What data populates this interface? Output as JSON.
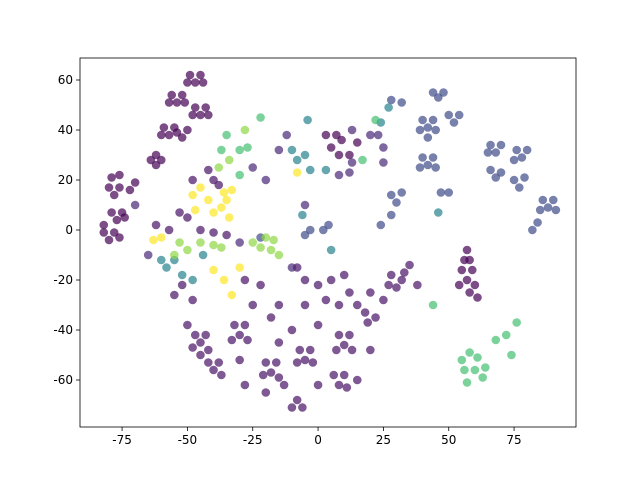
{
  "chart_data": {
    "type": "scatter",
    "xlim": [
      -91.1,
      98.7
    ],
    "ylim": [
      -78.8,
      68.8
    ],
    "xticks": [
      -75,
      -50,
      -25,
      0,
      25,
      50,
      75
    ],
    "yticks": [
      -60,
      -40,
      -20,
      0,
      20,
      40,
      60
    ],
    "series": [
      {
        "color": "#440154",
        "x": [
          -49,
          -45,
          -47,
          -44,
          -50,
          -56,
          -52,
          -54,
          -57,
          -51,
          -47,
          -43,
          -45,
          -48,
          -42,
          -59,
          -55,
          -57,
          -60,
          -54,
          -50,
          -52,
          -64,
          -60,
          -62,
          -62,
          -80,
          -76,
          -78,
          -79,
          -76,
          -70,
          -72,
          -79,
          -75,
          -77,
          -74,
          -82,
          -78,
          -80,
          -82,
          -76,
          55,
          59,
          57,
          60,
          54,
          58,
          61,
          56,
          58,
          57,
          3,
          7,
          9,
          5,
          8,
          12,
          15
        ],
        "y": [
          62,
          62,
          59,
          59,
          59,
          54,
          54,
          51,
          51,
          51,
          49,
          49,
          46,
          46,
          46,
          41,
          41,
          38,
          38,
          39,
          40,
          37,
          28,
          28,
          26,
          30,
          17,
          17,
          14,
          21,
          22,
          19,
          16,
          7,
          7,
          4,
          5,
          -1,
          -1,
          -4,
          2,
          -3,
          -16,
          -16,
          -20,
          -22,
          -22,
          -25,
          -27,
          -12,
          -12,
          -8,
          38,
          38,
          36,
          33,
          30,
          30,
          35
        ]
      },
      {
        "color": "#471365",
        "x": [
          -47,
          -43,
          -45,
          -48,
          -42,
          -45,
          -32,
          -28,
          -30,
          -33,
          -27,
          -42,
          -38,
          -40,
          -37,
          -20,
          -16,
          -18,
          -15,
          -21,
          -7,
          -3,
          -5,
          -2,
          -8,
          -10,
          -6,
          -8,
          8,
          12,
          10,
          13,
          7,
          6,
          10,
          8,
          11,
          18,
          22,
          19,
          28,
          32,
          30,
          27,
          33,
          -8,
          -5,
          0,
          5,
          10,
          12,
          8,
          3,
          -5,
          -15,
          -22,
          -28,
          -52,
          -55,
          -48,
          -25,
          -18,
          -10,
          0,
          15,
          20,
          38,
          35,
          25,
          -13,
          0,
          -30,
          -50,
          -28,
          -20,
          20,
          15,
          -15,
          -57,
          -62,
          -50,
          -53,
          -45,
          -40,
          -42,
          -35,
          -48,
          -40,
          -38
        ],
        "y": [
          -42,
          -42,
          -45,
          -47,
          -48,
          -50,
          -38,
          -38,
          -42,
          -44,
          -44,
          -53,
          -53,
          -56,
          -58,
          -53,
          -53,
          -57,
          -59,
          -58,
          -48,
          -48,
          -52,
          -53,
          -53,
          -71,
          -71,
          -68,
          -42,
          -42,
          -46,
          -48,
          -48,
          -58,
          -58,
          -62,
          -63,
          -33,
          -35,
          -37,
          -18,
          -20,
          -23,
          -22,
          -17,
          -15,
          -20,
          -22,
          -20,
          -18,
          -25,
          -30,
          -28,
          -30,
          -30,
          -22,
          -20,
          -22,
          -26,
          -28,
          -30,
          -35,
          -40,
          -38,
          -30,
          -25,
          -22,
          -14,
          -28,
          -62,
          -62,
          -52,
          -38,
          -62,
          -65,
          -48,
          -60,
          -45,
          0,
          2,
          5,
          7,
          0,
          -1,
          24,
          -2,
          20,
          20,
          18
        ]
      },
      {
        "color": "#482878",
        "x": [
          20,
          23,
          25,
          25,
          13,
          12,
          8,
          -12,
          -15,
          -25,
          -20,
          -10,
          -5,
          13,
          -70,
          -65,
          -30
        ],
        "y": [
          38,
          38,
          33,
          27,
          27,
          23,
          22,
          38,
          32,
          25,
          20,
          -15,
          10,
          40,
          10,
          -10,
          -5
        ]
      },
      {
        "color": "#3e4a89",
        "x": [
          40,
          44,
          42,
          39,
          45,
          42,
          50,
          54,
          52,
          44,
          46,
          48,
          40,
          44,
          42,
          39,
          45,
          66,
          70,
          68,
          65,
          76,
          80,
          78,
          75,
          66,
          70,
          68,
          75,
          79,
          77,
          86,
          90,
          88,
          85,
          91,
          28,
          32,
          30,
          24,
          28,
          47,
          50,
          82,
          84,
          28,
          32,
          -3,
          2,
          4,
          -5,
          -22
        ],
        "y": [
          44,
          44,
          41,
          40,
          40,
          37,
          46,
          46,
          43,
          55,
          53,
          55,
          29,
          29,
          26,
          25,
          25,
          34,
          34,
          31,
          31,
          32,
          32,
          29,
          28,
          24,
          23,
          21,
          20,
          21,
          17,
          12,
          12,
          9,
          8,
          8,
          14,
          15,
          11,
          2,
          6,
          15,
          15,
          0,
          3,
          52,
          51,
          0,
          0,
          2,
          -2,
          -3
        ]
      },
      {
        "color": "#26828e",
        "x": [
          -5,
          -8,
          -3,
          -4,
          3,
          24,
          27,
          46,
          -6,
          -58,
          -55,
          -60,
          -52,
          -48,
          -44,
          5,
          -10
        ],
        "y": [
          30,
          28,
          24,
          44,
          24,
          43,
          49,
          7,
          6,
          -15,
          -12,
          -12,
          -18,
          -20,
          -10,
          -8,
          32
        ]
      },
      {
        "color": "#44bf70",
        "x": [
          55,
          58,
          61,
          56,
          60,
          64,
          68,
          72,
          74,
          57,
          63,
          76,
          44,
          -22,
          -30,
          -27,
          -35,
          -37,
          -30,
          17,
          22
        ],
        "y": [
          -52,
          -49,
          -51,
          -56,
          -56,
          -55,
          -44,
          -42,
          -50,
          -61,
          -59,
          -37,
          -30,
          45,
          32,
          33,
          38,
          32,
          22,
          28,
          44
        ]
      },
      {
        "color": "#8fd744",
        "x": [
          -53,
          -50,
          -45,
          -40,
          -37,
          -55,
          -38,
          -34,
          -28,
          -18,
          -22,
          -25,
          -20,
          -17,
          -15
        ],
        "y": [
          -5,
          -8,
          -5,
          -6,
          -7,
          -10,
          25,
          28,
          40,
          -8,
          -7,
          -5,
          -3,
          -4,
          -10
        ]
      },
      {
        "color": "#fde725",
        "x": [
          -45,
          -48,
          -42,
          -36,
          -33,
          -35,
          -37,
          -34,
          -40,
          -47,
          -60,
          -63,
          -40,
          -36,
          -33,
          -8,
          -30
        ],
        "y": [
          17,
          14,
          12,
          15,
          16,
          12,
          9,
          5,
          7,
          8,
          -3,
          -4,
          -16,
          -20,
          -26,
          23,
          -15
        ]
      }
    ]
  }
}
